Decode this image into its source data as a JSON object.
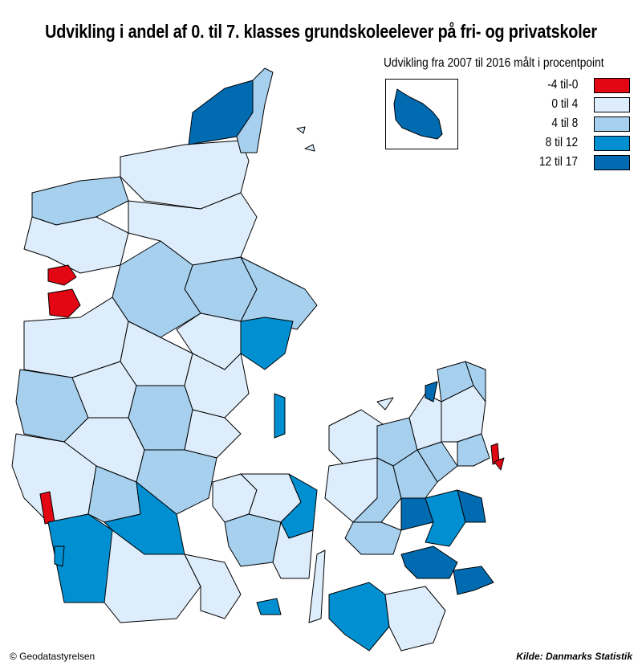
{
  "title": "Udvikling i andel af 0. til 7. klasses grundskoleelever på fri- og privatskoler",
  "legend": {
    "title": "Udvikling fra 2007 til 2016 målt i procentpoint",
    "items": [
      {
        "label": "-4 til-0",
        "color": "#e30613"
      },
      {
        "label": "0 til 4",
        "color": "#deedfb"
      },
      {
        "label": "4 til 8",
        "color": "#a6d0ee"
      },
      {
        "label": "8 til 12",
        "color": "#0090d2"
      },
      {
        "label": "12 til 17",
        "color": "#006bb0"
      }
    ]
  },
  "inset_region": "Bornholm",
  "credit": "© Geodatastyrelsen",
  "source": "Kilde: Danmarks Statistik"
}
